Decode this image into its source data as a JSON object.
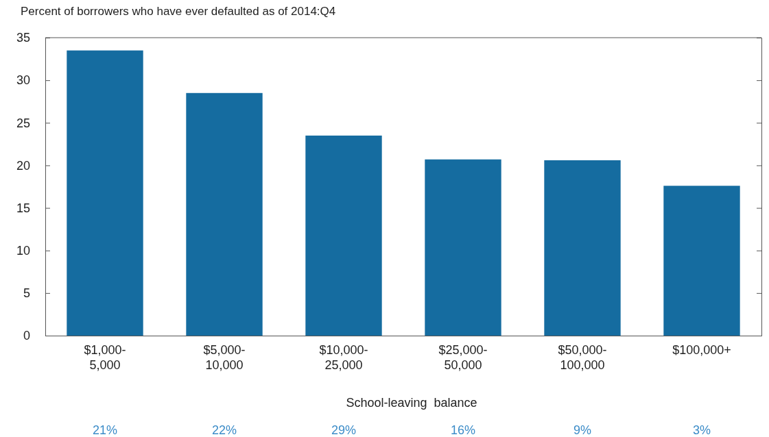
{
  "chart_data": {
    "type": "bar",
    "title": "Percent of borrowers who have ever defaulted as of 2014:Q4",
    "xlabel": "School-leaving  balance",
    "categories": [
      "$1,000-5,000",
      "$5,000-10,000",
      "$10,000-25,000",
      "$25,000-50,000",
      "$50,000-100,000",
      "$100,000+"
    ],
    "values": [
      33.5,
      28.5,
      23.5,
      20.7,
      20.6,
      17.6
    ],
    "color": "#156ca0",
    "ylim": [
      0,
      35
    ],
    "yticks": [
      0,
      5,
      10,
      15,
      20,
      25,
      30,
      35
    ],
    "grid": false,
    "annotations": [
      "21%",
      "22%",
      "29%",
      "16%",
      "9%",
      "3%"
    ]
  }
}
